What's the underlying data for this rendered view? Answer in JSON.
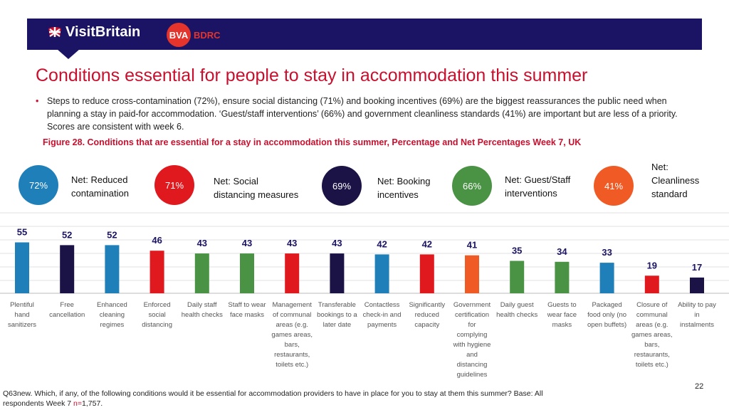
{
  "header": {
    "brand_visitbritain": "VisitBritain",
    "brand_bva": "BVA",
    "brand_bdrc": "BDRC"
  },
  "title": "Conditions essential for people to stay in accommodation this summer",
  "bullet_text": "Steps to reduce cross-contamination (72%), ensure social distancing (71%) and booking incentives (69%) are the biggest reassurances the public need when planning a stay in paid-for accommodation. ‘Guest/staff interventions’ (66%) and government cleanliness standards (41%) are important but are less of a priority. Scores are consistent with week 6.",
  "figure_caption": "Figure 28. Conditions that are essential for a stay in accommodation this summer, Percentage and Net Percentages Week 7, UK",
  "nets": [
    {
      "value": "72%",
      "label1": "Net: Reduced",
      "label2": "contamination",
      "label3": "",
      "color": "#1f7fb8"
    },
    {
      "value": "71%",
      "label1": "Net: Social",
      "label2": "distancing measures",
      "label3": "",
      "color": "#e0191f"
    },
    {
      "value": "69%",
      "label1": "Net: Booking",
      "label2": "incentives",
      "label3": "",
      "color": "#1b1245"
    },
    {
      "value": "66%",
      "label1": "Net: Guest/Staff",
      "label2": "interventions",
      "label3": "",
      "color": "#4a9244"
    },
    {
      "value": "41%",
      "label1": "Net:",
      "label2": "Cleanliness",
      "label3": "standard",
      "color": "#f05a24"
    }
  ],
  "chart_data": {
    "type": "bar",
    "title": "",
    "xlabel": "",
    "ylabel": "",
    "ylim": [
      0,
      60
    ],
    "grid": true,
    "categories": [
      "Plentiful hand sanitizers",
      "Free cancellation",
      "Enhanced cleaning regimes",
      "Enforced social distancing",
      "Daily staff health checks",
      "Staff to wear face masks",
      "Management of communal areas (e.g. games areas, bars, restaurants, toilets etc.)",
      "Transferable bookings to a later date",
      "Contactless check-in and payments",
      "Significantly reduced capacity",
      "Government certification for complying with hygiene and distancing guidelines",
      "Daily guest health checks",
      "Guests to wear face masks",
      "Packaged food only (no open buffets)",
      "Closure of communal areas (e.g. games areas, bars, restaurants, toilets etc.)",
      "Ability to pay in instalments"
    ],
    "label_lines": [
      [
        "Plentiful",
        "hand",
        "sanitizers"
      ],
      [
        "Free",
        "cancellation"
      ],
      [
        "Enhanced",
        "cleaning",
        "regimes"
      ],
      [
        "Enforced",
        "social",
        "distancing"
      ],
      [
        "Daily staff",
        "health checks"
      ],
      [
        "Staff to wear",
        "face masks"
      ],
      [
        "Management",
        "of communal",
        "areas (e.g.",
        "games areas,",
        "bars,",
        "restaurants,",
        "toilets etc.)"
      ],
      [
        "Transferable",
        "bookings to a",
        "later date"
      ],
      [
        "Contactless",
        "check-in and",
        "payments"
      ],
      [
        "Significantly",
        "reduced",
        "capacity"
      ],
      [
        "Government",
        "certification",
        "for",
        "complying",
        "with hygiene",
        "and",
        "distancing",
        "guidelines"
      ],
      [
        "Daily guest",
        "health checks"
      ],
      [
        "Guests to",
        "wear face",
        "masks"
      ],
      [
        "Packaged",
        "food only (no",
        "open buffets)"
      ],
      [
        "Closure of",
        "communal",
        "areas (e.g.",
        "games areas,",
        "bars,",
        "restaurants,",
        "toilets etc.)"
      ],
      [
        "Ability to pay",
        "in",
        "instalments"
      ]
    ],
    "values": [
      55,
      52,
      52,
      46,
      43,
      43,
      43,
      43,
      42,
      42,
      41,
      35,
      34,
      33,
      19,
      17
    ],
    "colors": [
      "#1f7fb8",
      "#1b1245",
      "#1f7fb8",
      "#e0191f",
      "#4a9244",
      "#4a9244",
      "#e0191f",
      "#1b1245",
      "#1f7fb8",
      "#e0191f",
      "#f05a24",
      "#4a9244",
      "#4a9244",
      "#1f7fb8",
      "#e0191f",
      "#1b1245"
    ]
  },
  "footer": {
    "text1": "Q63new. Which, if any, of the following conditions would it be essential for accommodation providers to have in place for you to stay at them this summer? Base: All respondents Week 7 ",
    "n_label": "n=",
    "n_value": "1,757."
  },
  "page_number": "22"
}
